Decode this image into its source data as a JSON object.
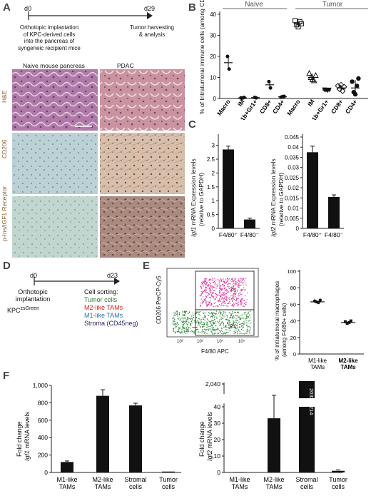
{
  "panels": {
    "A": "A",
    "B": "B",
    "C": "C",
    "D": "D",
    "E": "E",
    "F": "F"
  },
  "panelA": {
    "d_start": "d0",
    "d_end": "d29",
    "left_note": [
      "Orthotopic implantation",
      "of KPC-derived cells",
      "into the pancreas of",
      "syngeneic recipient mice"
    ],
    "right_note": [
      "Tumor harvesting",
      "& analysis"
    ],
    "col_headers": [
      "Naive mouse pancreas",
      "PDAC"
    ],
    "row_labels": [
      "H&E",
      "CD206",
      "p-Ins/IGF1 Receptor"
    ],
    "colors": {
      "he_naive": "#b07aa8",
      "he_pdac": "#c5909f",
      "cd_naive": "#b9cfd2",
      "cd_pdac": "#d2b8a6",
      "p_naive": "#bcd3cc",
      "p_pdac": "#a8867c",
      "label": "#8a5a2a"
    }
  },
  "panelB": {
    "ylabel": "% of Intratumoral immune cells (among CD45⁺ cells)",
    "groups": [
      "Naive",
      "Tumor"
    ],
    "yticks": [
      "0",
      "10",
      "20",
      "30",
      "40"
    ],
    "categories": [
      "Macro",
      "IM",
      "CD11b+Gr1+",
      "CD8+",
      "CD4+",
      "Macro",
      "IM",
      "CD11b+Gr1+",
      "CD8+",
      "CD4+"
    ]
  },
  "panelC": {
    "left": {
      "ylabel_gene": "Igf1",
      "ylabel_rest": " mRNA Expression levels",
      "ylabel2": "(relative to GAPDH)",
      "yticks": [
        "0",
        "0.5",
        "1",
        "1.5",
        "2",
        "2.5",
        "3"
      ],
      "cats": [
        "F4/80⁺",
        "F4/80⁻"
      ]
    },
    "right": {
      "ylabel_gene": "Igf2",
      "ylabel_rest": " mRNA Expression levels",
      "ylabel2": "(relative to GAPDH)",
      "yticks": [
        "0",
        "0.005",
        "0.01",
        "0.015",
        "0.02",
        "0.025",
        "0.03",
        "0.035",
        "0.04",
        "0.045"
      ],
      "cats": [
        "F4/80⁺",
        "F4/80⁻"
      ]
    }
  },
  "panelD": {
    "d_start": "d0",
    "d_end": "d23",
    "left_note": [
      "Orthotopic",
      "implantation"
    ],
    "kpc": "KPC",
    "kpc_sup": "zsGreen",
    "sorting_title": "Cell sorting:",
    "sort_items": [
      {
        "label": "Tumor cells",
        "color": "#2f7d2f"
      },
      {
        "label": "M2-like TAMs",
        "color": "#d42020"
      },
      {
        "label": "M1-like TAMs",
        "color": "#2f6fb0"
      },
      {
        "label": "Stroma (CD45neg)",
        "color": "#2a2a6a"
      }
    ]
  },
  "panelE": {
    "flow_ylabel": "CD206 PerCP-Cy5",
    "flow_xlabel": "F4/80 APC",
    "gate_p5": "P5",
    "gate_p6": "P6",
    "flow_ticks": [
      "10²",
      "10³",
      "10⁴",
      "10⁵"
    ],
    "dot_ylabel1": "% of intratumoral macrophages",
    "dot_ylabel2": "(among F4/80+ cells)",
    "dot_yticks": [
      "0",
      "20",
      "40",
      "60",
      "80",
      "100"
    ],
    "dot_cats": [
      [
        "M1-like",
        "TAMs"
      ],
      [
        "M2-like",
        "TAMs"
      ]
    ],
    "colors": {
      "pink": "#e0389a",
      "green": "#2f8a3a"
    }
  },
  "panelF": {
    "left": {
      "ylabel1": "Fold change",
      "ylabel_gene": "Igf1",
      "ylabel_rest": " mRNA levels",
      "yticks": [
        "0",
        "200",
        "400",
        "600",
        "800",
        "1,000"
      ]
    },
    "right": {
      "ylabel1": "Fold change",
      "ylabel_gene": "Igf2",
      "ylabel_rest": " mRNA levels",
      "yticks_low": [
        "0",
        "10",
        "20",
        "30",
        "40"
      ],
      "ytick_high": "2,040",
      "annot": "2032 ± 214"
    },
    "cats": [
      [
        "M1-like",
        "TAMs"
      ],
      [
        "M2-like",
        "TAMs"
      ],
      [
        "Stromal",
        "cells"
      ],
      [
        "Tumor",
        "cells"
      ]
    ]
  },
  "chart_data": [
    {
      "type": "scatter",
      "id": "B",
      "title": "",
      "ylabel": "% of Intratumoral immune cells (among CD45⁺ cells)",
      "ylim": [
        0,
        40
      ],
      "categories": [
        "Macro",
        "IM",
        "CD11b+Gr1+",
        "CD8+",
        "CD4+",
        "Macro",
        "IM",
        "CD11b+Gr1+",
        "CD8+",
        "CD4+"
      ],
      "series": [
        {
          "name": "Naive",
          "means": [
            17,
            0.3,
            0.4,
            6.5,
            0.8
          ]
        },
        {
          "name": "Tumor",
          "means": [
            35.5,
            10,
            4,
            5,
            5
          ]
        }
      ]
    },
    {
      "type": "bar",
      "id": "C-left",
      "categories": [
        "F4/80⁺",
        "F4/80⁻"
      ],
      "values": [
        2.85,
        0.32
      ],
      "errors": [
        0.12,
        0.05
      ],
      "ylim": [
        0,
        3.3
      ]
    },
    {
      "type": "bar",
      "id": "C-right",
      "categories": [
        "F4/80⁺",
        "F4/80⁻"
      ],
      "values": [
        0.0375,
        0.0155
      ],
      "errors": [
        0.003,
        0.001
      ],
      "ylim": [
        0,
        0.045
      ]
    },
    {
      "type": "scatter",
      "id": "E-right",
      "categories": [
        "M1-like TAMs",
        "M2-like TAMs"
      ],
      "values": [
        63,
        38
      ],
      "ylim": [
        0,
        100
      ]
    },
    {
      "type": "bar",
      "id": "F-left",
      "categories": [
        "M1-like TAMs",
        "M2-like TAMs",
        "Stromal cells",
        "Tumor cells"
      ],
      "values": [
        120,
        880,
        770,
        2
      ],
      "errors": [
        12,
        70,
        25,
        0
      ],
      "ylim": [
        0,
        1000
      ]
    },
    {
      "type": "bar",
      "id": "F-right",
      "categories": [
        "M1-like TAMs",
        "M2-like TAMs",
        "Stromal cells",
        "Tumor cells"
      ],
      "values": [
        0.2,
        33,
        2032,
        1
      ],
      "errors": [
        0,
        14,
        214,
        0.6
      ]
    }
  ]
}
